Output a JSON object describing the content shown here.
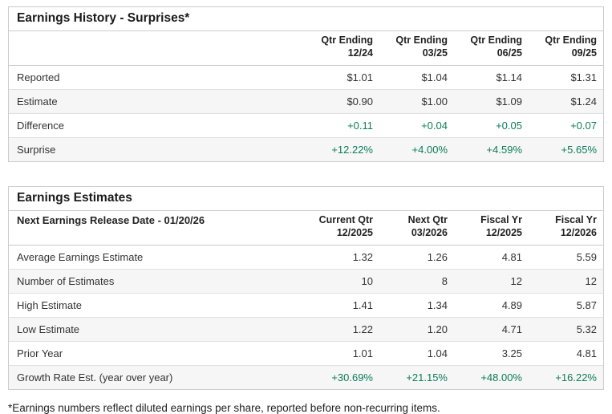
{
  "colors": {
    "positive": "#0E7C5A",
    "card_border": "#cccccc",
    "alt_row_bg": "#f6f6f6",
    "text": "#333333"
  },
  "history": {
    "title": "Earnings History - Surprises*",
    "columns": [
      {
        "line1": "Qtr Ending",
        "line2": "12/24"
      },
      {
        "line1": "Qtr Ending",
        "line2": "03/25"
      },
      {
        "line1": "Qtr Ending",
        "line2": "06/25"
      },
      {
        "line1": "Qtr Ending",
        "line2": "09/25"
      }
    ],
    "rows": [
      {
        "label": "Reported",
        "values": [
          "$1.01",
          "$1.04",
          "$1.14",
          "$1.31"
        ],
        "positive": false
      },
      {
        "label": "Estimate",
        "values": [
          "$0.90",
          "$1.00",
          "$1.09",
          "$1.24"
        ],
        "positive": false
      },
      {
        "label": "Difference",
        "values": [
          "+0.11",
          "+0.04",
          "+0.05",
          "+0.07"
        ],
        "positive": true
      },
      {
        "label": "Surprise",
        "values": [
          "+12.22%",
          "+4.00%",
          "+4.59%",
          "+5.65%"
        ],
        "positive": true
      }
    ]
  },
  "estimates": {
    "title": "Earnings Estimates",
    "release_date_label": "Next Earnings Release Date - 01/20/26",
    "columns": [
      {
        "line1": "Current Qtr",
        "line2": "12/2025"
      },
      {
        "line1": "Next Qtr",
        "line2": "03/2026"
      },
      {
        "line1": "Fiscal Yr",
        "line2": "12/2025"
      },
      {
        "line1": "Fiscal Yr",
        "line2": "12/2026"
      }
    ],
    "rows": [
      {
        "label": "Average Earnings Estimate",
        "values": [
          "1.32",
          "1.26",
          "4.81",
          "5.59"
        ],
        "positive": false
      },
      {
        "label": "Number of Estimates",
        "values": [
          "10",
          "8",
          "12",
          "12"
        ],
        "positive": false
      },
      {
        "label": "High Estimate",
        "values": [
          "1.41",
          "1.34",
          "4.89",
          "5.87"
        ],
        "positive": false
      },
      {
        "label": "Low Estimate",
        "values": [
          "1.22",
          "1.20",
          "4.71",
          "5.32"
        ],
        "positive": false
      },
      {
        "label": "Prior Year",
        "values": [
          "1.01",
          "1.04",
          "3.25",
          "4.81"
        ],
        "positive": false
      },
      {
        "label": "Growth Rate Est. (year over year)",
        "values": [
          "+30.69%",
          "+21.15%",
          "+48.00%",
          "+16.22%"
        ],
        "positive": true
      }
    ]
  },
  "footnote": "*Earnings numbers reflect diluted earnings per share, reported before non-recurring items."
}
